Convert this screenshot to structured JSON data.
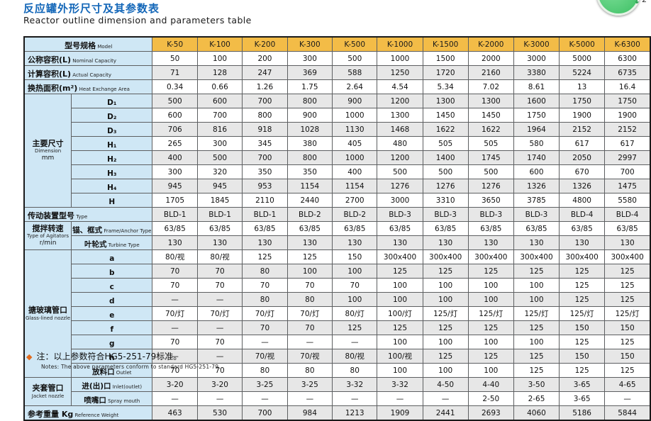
{
  "page": {
    "title_cn": "反应罐外形尺寸及其参数表",
    "title_en": "Reactor outline dimension and parameters table",
    "note_marker": "◆",
    "note_cn": "注：以上参数符合HG5-251-79标准。",
    "note_en": "Notes: The above parameters conform to standard HG5-251-79."
  },
  "widget": {
    "arrow": "↓",
    "count": "2"
  },
  "colors": {
    "title_blue": "#1266b8",
    "header_orange": "#f3bc47",
    "label_blue": "#cfe7f5",
    "stripe_gray": "#e7e7e7",
    "note_marker_orange": "#e06a1f",
    "circle_green": "#3cbf63"
  },
  "table": {
    "header": {
      "label_cn": "型号规格",
      "label_en": "Model",
      "models": [
        "K-50",
        "K-100",
        "K-200",
        "K-300",
        "K-500",
        "K-1000",
        "K-1500",
        "K-2000",
        "K-3000",
        "K-5000",
        "K-6300"
      ]
    },
    "groups": [
      {
        "cn": "主要尺寸",
        "en": "Dimension",
        "unit": "mm",
        "span": 8
      },
      {
        "cn": "搅拌转速",
        "en": "Type of Agitators",
        "unit": "r/min",
        "span": 2
      },
      {
        "cn": "搪玻璃管口",
        "en": "Glass-lined nozzle",
        "unit": "",
        "span": 9
      },
      {
        "cn": "夹套管口",
        "en": "Jacket nozzle",
        "unit": "",
        "span": 2
      }
    ],
    "rows": [
      {
        "type": "full",
        "cn": "公称容积(L)",
        "en": "Nominal Capacity",
        "values": [
          "50",
          "100",
          "200",
          "300",
          "500",
          "1000",
          "1500",
          "2000",
          "3000",
          "5000",
          "6300"
        ]
      },
      {
        "type": "full",
        "cn": "计算容积(L)",
        "en": "Actual Capacity",
        "values": [
          "71",
          "128",
          "247",
          "369",
          "588",
          "1250",
          "1720",
          "2160",
          "3380",
          "5224",
          "6735"
        ]
      },
      {
        "type": "full",
        "cn": "换热面积(m²)",
        "en": "Heat Exchange Area",
        "values": [
          "0.34",
          "0.66",
          "1.26",
          "1.75",
          "2.64",
          "4.54",
          "5.34",
          "7.02",
          "8.61",
          "13",
          "16.4"
        ]
      },
      {
        "type": "sub",
        "group_start": 0,
        "cn": "D₁",
        "values": [
          "500",
          "600",
          "700",
          "800",
          "900",
          "1200",
          "1300",
          "1300",
          "1600",
          "1750",
          "1750"
        ]
      },
      {
        "type": "sub",
        "cn": "D₂",
        "values": [
          "600",
          "700",
          "800",
          "900",
          "1000",
          "1300",
          "1450",
          "1450",
          "1750",
          "1900",
          "1900"
        ]
      },
      {
        "type": "sub",
        "cn": "D₃",
        "values": [
          "706",
          "816",
          "918",
          "1028",
          "1130",
          "1468",
          "1622",
          "1622",
          "1964",
          "2152",
          "2152"
        ]
      },
      {
        "type": "sub",
        "cn": "H₁",
        "values": [
          "265",
          "300",
          "345",
          "380",
          "405",
          "480",
          "505",
          "505",
          "580",
          "617",
          "617"
        ]
      },
      {
        "type": "sub",
        "cn": "H₂",
        "values": [
          "400",
          "500",
          "700",
          "800",
          "1000",
          "1200",
          "1400",
          "1745",
          "1740",
          "2050",
          "2997"
        ]
      },
      {
        "type": "sub",
        "cn": "H₃",
        "values": [
          "300",
          "320",
          "350",
          "350",
          "400",
          "500",
          "500",
          "500",
          "600",
          "670",
          "700"
        ]
      },
      {
        "type": "sub",
        "cn": "H₄",
        "values": [
          "945",
          "945",
          "953",
          "1154",
          "1154",
          "1276",
          "1276",
          "1276",
          "1326",
          "1326",
          "1475"
        ]
      },
      {
        "type": "sub",
        "cn": "H",
        "values": [
          "1705",
          "1845",
          "2110",
          "2440",
          "2700",
          "3000",
          "3310",
          "3650",
          "3785",
          "4800",
          "5580"
        ]
      },
      {
        "type": "full",
        "cn": "传动装置型号",
        "en": "Type",
        "values": [
          "BLD-1",
          "BLD-1",
          "BLD-1",
          "BLD-2",
          "BLD-2",
          "BLD-3",
          "BLD-3",
          "BLD-3",
          "BLD-3",
          "BLD-4",
          "BLD-4"
        ]
      },
      {
        "type": "sub",
        "group_start": 1,
        "cn": "锚、框式",
        "en": "Frame/Anchor Type",
        "values": [
          "63/85",
          "63/85",
          "63/85",
          "63/85",
          "63/85",
          "63/85",
          "63/85",
          "63/85",
          "63/85",
          "63/85",
          "63/85"
        ]
      },
      {
        "type": "sub",
        "cn": "叶轮式",
        "en": "Turbine Type",
        "values": [
          "130",
          "130",
          "130",
          "130",
          "130",
          "130",
          "130",
          "130",
          "130",
          "130",
          "130"
        ]
      },
      {
        "type": "sub",
        "group_start": 2,
        "cn": "a",
        "values": [
          "80/视",
          "80/视",
          "125",
          "125",
          "150",
          "300x400",
          "300x400",
          "300x400",
          "300x400",
          "300x400",
          "300x400"
        ]
      },
      {
        "type": "sub",
        "cn": "b",
        "values": [
          "70",
          "70",
          "80",
          "100",
          "100",
          "125",
          "125",
          "125",
          "125",
          "125",
          "125"
        ]
      },
      {
        "type": "sub",
        "cn": "c",
        "values": [
          "70",
          "70",
          "70",
          "70",
          "70",
          "100",
          "100",
          "100",
          "100",
          "125",
          "125"
        ]
      },
      {
        "type": "sub",
        "cn": "d",
        "values": [
          "—",
          "—",
          "80",
          "80",
          "100",
          "100",
          "100",
          "100",
          "100",
          "125",
          "125"
        ]
      },
      {
        "type": "sub",
        "cn": "e",
        "values": [
          "70/灯",
          "70/灯",
          "70/灯",
          "70/灯",
          "80/灯",
          "100/灯",
          "125/灯",
          "125/灯",
          "125/灯",
          "125/灯",
          "125/灯"
        ]
      },
      {
        "type": "sub",
        "cn": "f",
        "values": [
          "—",
          "—",
          "70",
          "70",
          "125",
          "125",
          "125",
          "125",
          "125",
          "150",
          "150"
        ]
      },
      {
        "type": "sub",
        "cn": "g",
        "values": [
          "70",
          "70",
          "—",
          "—",
          "—",
          "100",
          "100",
          "100",
          "100",
          "125",
          "125"
        ]
      },
      {
        "type": "sub",
        "cn": "h",
        "values": [
          "—",
          "—",
          "70/视",
          "70/视",
          "80/视",
          "100/视",
          "125",
          "125",
          "125",
          "150",
          "150"
        ]
      },
      {
        "type": "sub",
        "cn": "放料口",
        "en": "Outlet",
        "values": [
          "70",
          "70",
          "80",
          "80",
          "80",
          "100",
          "100",
          "100",
          "125",
          "125",
          "125"
        ]
      },
      {
        "type": "sub",
        "group_start": 3,
        "cn": "进(出)口",
        "en": "Inlet(outlet)",
        "values": [
          "3-20",
          "3-20",
          "3-25",
          "3-25",
          "3-32",
          "3-32",
          "4-50",
          "4-40",
          "3-50",
          "3-65",
          "4-65"
        ]
      },
      {
        "type": "sub",
        "cn": "喷嘴口",
        "en": "Spray mouth",
        "values": [
          "—",
          "—",
          "—",
          "—",
          "—",
          "—",
          "—",
          "2-50",
          "2-65",
          "3-65",
          "—"
        ]
      },
      {
        "type": "full",
        "cn": "参考重量 Kg",
        "en": "Reference Weight",
        "values": [
          "463",
          "530",
          "700",
          "984",
          "1213",
          "1909",
          "2441",
          "2693",
          "4060",
          "5186",
          "5844"
        ]
      }
    ]
  }
}
